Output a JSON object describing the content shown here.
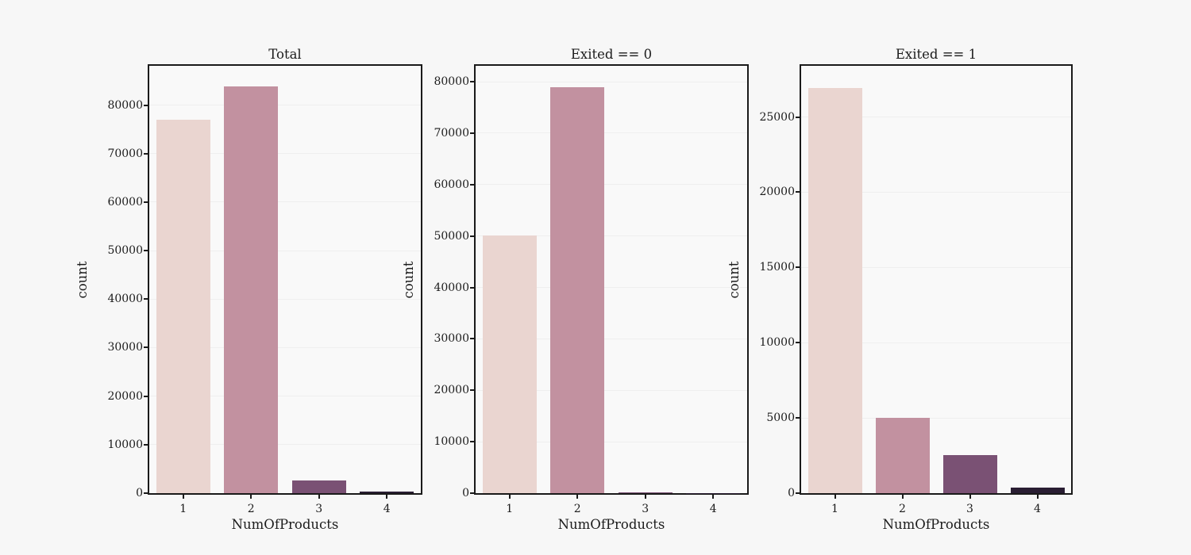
{
  "figure": {
    "background": "#f7f7f7",
    "plot_background": "#f9f9f9",
    "spine_color": "#1a1a1a",
    "grid_color": "#efefef",
    "text_color": "#1c1c1c",
    "bar_colors": [
      "#ead5d0",
      "#c291a0",
      "#7a5174",
      "#2a1e33"
    ]
  },
  "chart_data": [
    {
      "type": "bar",
      "title": "Total",
      "categories": [
        "1",
        "2",
        "3",
        "4"
      ],
      "values": [
        77000,
        83800,
        2650,
        400
      ],
      "xlabel": "NumOfProducts",
      "ylabel": "count",
      "ylim": [
        0,
        88100
      ],
      "yticks": [
        0,
        10000,
        20000,
        30000,
        40000,
        50000,
        60000,
        70000,
        80000
      ],
      "grid": true,
      "legend_position": "none"
    },
    {
      "type": "bar",
      "title": "Exited == 0",
      "categories": [
        "1",
        "2",
        "3",
        "4"
      ],
      "values": [
        50100,
        78900,
        120,
        30
      ],
      "xlabel": "NumOfProducts",
      "ylabel": "count",
      "ylim": [
        0,
        83100
      ],
      "yticks": [
        0,
        10000,
        20000,
        30000,
        40000,
        50000,
        60000,
        70000,
        80000
      ],
      "grid": true,
      "legend_position": "none"
    },
    {
      "type": "bar",
      "title": "Exited == 1",
      "categories": [
        "1",
        "2",
        "3",
        "4"
      ],
      "values": [
        26900,
        5000,
        2550,
        370
      ],
      "xlabel": "NumOfProducts",
      "ylabel": "count",
      "ylim": [
        0,
        28400
      ],
      "yticks": [
        0,
        5000,
        10000,
        15000,
        20000,
        25000
      ],
      "grid": true,
      "legend_position": "none"
    }
  ]
}
